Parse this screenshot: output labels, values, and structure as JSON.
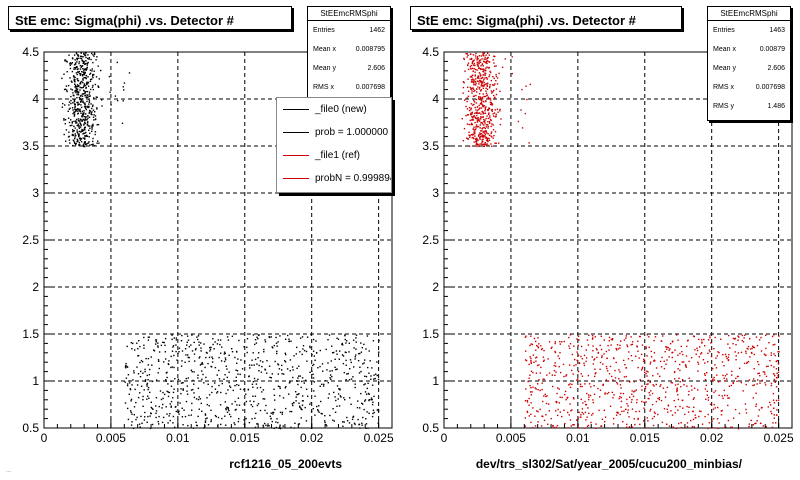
{
  "footer_text": "...",
  "panels": [
    {
      "id": "left",
      "title": "StE emc: Sigma(phi) .vs. Detector #",
      "stats": {
        "name": "StEEmcRMSphi",
        "rows": [
          {
            "label": "Entries",
            "value": "1462"
          },
          {
            "label": "Mean x",
            "value": "0.008795"
          },
          {
            "label": "Mean y",
            "value": "2.606"
          },
          {
            "label": "RMS x",
            "value": "0.007698"
          }
        ]
      },
      "legend": [
        {
          "label": "_file0 (new)",
          "color": "#000000"
        },
        {
          "label": "prob = 1.000000",
          "color": "#000000"
        },
        {
          "label": "_file1 (ref)",
          "color": "#cc0000"
        },
        {
          "label": "probN = 0.999894",
          "color": "#cc0000"
        }
      ],
      "xlabel": "rcf1216_05_200evts",
      "point_color": "#000000"
    },
    {
      "id": "right",
      "title": "StE emc: Sigma(phi) .vs. Detector #",
      "stats": {
        "name": "StEEmcRMSphi",
        "rows": [
          {
            "label": "Entries",
            "value": "1463"
          },
          {
            "label": "Mean x",
            "value": "0.00879"
          },
          {
            "label": "Mean y",
            "value": "2.606"
          },
          {
            "label": "RMS x",
            "value": "0.007698"
          },
          {
            "label": "RMS y",
            "value": "1.486"
          }
        ]
      },
      "legend": [],
      "xlabel": "dev/trs_sl302/Sat/year_2005/cucu200_minbias/",
      "point_color": "#cc0000"
    }
  ],
  "chart_data": [
    {
      "type": "scatter",
      "title": "StE emc: Sigma(phi) .vs. Detector #",
      "xlabel": "rcf1216_05_200evts",
      "ylabel": "",
      "xlim": [
        0,
        0.026
      ],
      "ylim": [
        0.5,
        4.5
      ],
      "xticks": [
        "0",
        "0.005",
        "0.01",
        "0.015",
        "0.02",
        "0.025"
      ],
      "yticks": [
        "0.5",
        "1",
        "1.5",
        "2",
        "2.5",
        "3",
        "3.5",
        "4",
        "4.5"
      ],
      "grid": true,
      "point_color": "#000000",
      "entries": 1462,
      "clusters": [
        {
          "x": [
            0.001,
            0.0045
          ],
          "y": [
            3.5,
            4.5
          ],
          "count": 560
        },
        {
          "x": [
            0.0045,
            0.0068
          ],
          "y": [
            3.5,
            4.5
          ],
          "count": 12
        },
        {
          "x": [
            0.006,
            0.025
          ],
          "y": [
            0.5,
            1.5
          ],
          "count": 890
        }
      ]
    },
    {
      "type": "scatter",
      "title": "StE emc: Sigma(phi) .vs. Detector #",
      "xlabel": "dev/trs_sl302/Sat/year_2005/cucu200_minbias/",
      "ylabel": "",
      "xlim": [
        0,
        0.026
      ],
      "ylim": [
        0.5,
        4.5
      ],
      "xticks": [
        "0",
        "0.005",
        "0.01",
        "0.015",
        "0.02",
        "0.025"
      ],
      "yticks": [
        "0.5",
        "1",
        "1.5",
        "2",
        "2.5",
        "3",
        "3.5",
        "4",
        "4.5"
      ],
      "grid": true,
      "point_color": "#cc0000",
      "entries": 1463,
      "clusters": [
        {
          "x": [
            0.001,
            0.0045
          ],
          "y": [
            3.5,
            4.5
          ],
          "count": 560
        },
        {
          "x": [
            0.0045,
            0.0068
          ],
          "y": [
            3.5,
            4.5
          ],
          "count": 12
        },
        {
          "x": [
            0.006,
            0.025
          ],
          "y": [
            0.5,
            1.5
          ],
          "count": 891
        }
      ]
    }
  ]
}
